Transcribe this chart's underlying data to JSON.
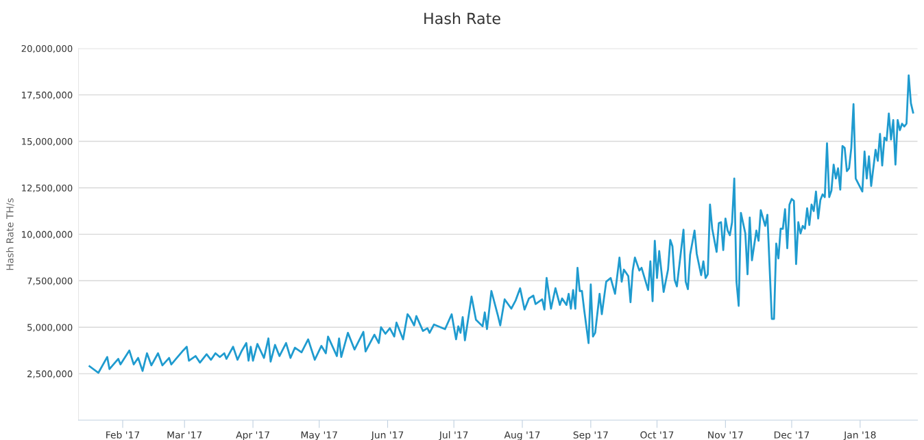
{
  "chart_data": {
    "type": "line",
    "title": "Hash Rate",
    "ylabel": "Hash Rate TH/s",
    "x": [
      "2017-01-17",
      "2017-01-21",
      "2017-01-25",
      "2017-01-26",
      "2017-01-30",
      "2017-01-31",
      "2017-02-04",
      "2017-02-06",
      "2017-02-08",
      "2017-02-10",
      "2017-02-12",
      "2017-02-14",
      "2017-02-17",
      "2017-02-19",
      "2017-02-22",
      "2017-02-23",
      "2017-02-28",
      "2017-03-02",
      "2017-03-03",
      "2017-03-06",
      "2017-03-08",
      "2017-03-11",
      "2017-03-13",
      "2017-03-15",
      "2017-03-17",
      "2017-03-19",
      "2017-03-20",
      "2017-03-23",
      "2017-03-25",
      "2017-03-27",
      "2017-03-29",
      "2017-03-30",
      "2017-03-31",
      "2017-04-01",
      "2017-04-03",
      "2017-04-06",
      "2017-04-08",
      "2017-04-09",
      "2017-04-11",
      "2017-04-13",
      "2017-04-16",
      "2017-04-18",
      "2017-04-20",
      "2017-04-23",
      "2017-04-26",
      "2017-04-29",
      "2017-05-02",
      "2017-05-04",
      "2017-05-05",
      "2017-05-09",
      "2017-05-10",
      "2017-05-11",
      "2017-05-14",
      "2017-05-17",
      "2017-05-21",
      "2017-05-22",
      "2017-05-26",
      "2017-05-28",
      "2017-05-29",
      "2017-05-31",
      "2017-06-02",
      "2017-06-04",
      "2017-06-05",
      "2017-06-08",
      "2017-06-10",
      "2017-06-11",
      "2017-06-13",
      "2017-06-14",
      "2017-06-17",
      "2017-06-19",
      "2017-06-20",
      "2017-06-22",
      "2017-06-27",
      "2017-06-30",
      "2017-07-02",
      "2017-07-03",
      "2017-07-04",
      "2017-07-05",
      "2017-07-06",
      "2017-07-09",
      "2017-07-11",
      "2017-07-14",
      "2017-07-15",
      "2017-07-16",
      "2017-07-18",
      "2017-07-21",
      "2017-07-22",
      "2017-07-24",
      "2017-07-27",
      "2017-07-29",
      "2017-07-31",
      "2017-08-02",
      "2017-08-04",
      "2017-08-06",
      "2017-08-07",
      "2017-08-10",
      "2017-08-11",
      "2017-08-12",
      "2017-08-14",
      "2017-08-16",
      "2017-08-18",
      "2017-08-19",
      "2017-08-21",
      "2017-08-22",
      "2017-08-23",
      "2017-08-24",
      "2017-08-25",
      "2017-08-26",
      "2017-08-27",
      "2017-08-28",
      "2017-08-29",
      "2017-08-31",
      "2017-09-01",
      "2017-09-02",
      "2017-09-03",
      "2017-09-05",
      "2017-09-06",
      "2017-09-08",
      "2017-09-10",
      "2017-09-12",
      "2017-09-14",
      "2017-09-15",
      "2017-09-16",
      "2017-09-18",
      "2017-09-19",
      "2017-09-20",
      "2017-09-21",
      "2017-09-23",
      "2017-09-24",
      "2017-09-25",
      "2017-09-27",
      "2017-09-28",
      "2017-09-29",
      "2017-09-30",
      "2017-10-01",
      "2017-10-02",
      "2017-10-04",
      "2017-10-06",
      "2017-10-07",
      "2017-10-08",
      "2017-10-09",
      "2017-10-10",
      "2017-10-13",
      "2017-10-14",
      "2017-10-15",
      "2017-10-16",
      "2017-10-18",
      "2017-10-19",
      "2017-10-21",
      "2017-10-22",
      "2017-10-23",
      "2017-10-24",
      "2017-10-25",
      "2017-10-26",
      "2017-10-28",
      "2017-10-29",
      "2017-10-30",
      "2017-10-31",
      "2017-11-01",
      "2017-11-02",
      "2017-11-03",
      "2017-11-04",
      "2017-11-05",
      "2017-11-06",
      "2017-11-07",
      "2017-11-08",
      "2017-11-09",
      "2017-11-10",
      "2017-11-11",
      "2017-11-12",
      "2017-11-13",
      "2017-11-15",
      "2017-11-16",
      "2017-11-17",
      "2017-11-19",
      "2017-11-20",
      "2017-11-22",
      "2017-11-23",
      "2017-11-24",
      "2017-11-25",
      "2017-11-26",
      "2017-11-27",
      "2017-11-28",
      "2017-11-29",
      "2017-11-30",
      "2017-12-01",
      "2017-12-02",
      "2017-12-03",
      "2017-12-04",
      "2017-12-05",
      "2017-12-06",
      "2017-12-07",
      "2017-12-08",
      "2017-12-09",
      "2017-12-10",
      "2017-12-11",
      "2017-12-12",
      "2017-12-13",
      "2017-12-14",
      "2017-12-15",
      "2017-12-16",
      "2017-12-17",
      "2017-12-18",
      "2017-12-19",
      "2017-12-20",
      "2017-12-21",
      "2017-12-22",
      "2017-12-23",
      "2017-12-24",
      "2017-12-25",
      "2017-12-26",
      "2017-12-27",
      "2017-12-28",
      "2017-12-29",
      "2017-12-30",
      "2018-01-02",
      "2018-01-03",
      "2018-01-04",
      "2018-01-05",
      "2018-01-06",
      "2018-01-08",
      "2018-01-09",
      "2018-01-10",
      "2018-01-11",
      "2018-01-12",
      "2018-01-13",
      "2018-01-14",
      "2018-01-15",
      "2018-01-16",
      "2018-01-17",
      "2018-01-18",
      "2018-01-19",
      "2018-01-20",
      "2018-01-21",
      "2018-01-22",
      "2018-01-23",
      "2018-01-24",
      "2018-01-25"
    ],
    "series": [
      {
        "color": "#1f9bcf",
        "values": [
          2900000,
          2550000,
          3400000,
          2750000,
          3300000,
          3000000,
          3750000,
          3000000,
          3350000,
          2650000,
          3600000,
          2950000,
          3600000,
          2950000,
          3350000,
          3000000,
          3700000,
          3950000,
          3200000,
          3450000,
          3100000,
          3550000,
          3250000,
          3600000,
          3400000,
          3600000,
          3300000,
          3950000,
          3250000,
          3750000,
          4150000,
          3200000,
          3950000,
          3200000,
          4100000,
          3350000,
          4400000,
          3150000,
          4050000,
          3450000,
          4150000,
          3350000,
          3900000,
          3650000,
          4350000,
          3250000,
          4000000,
          3600000,
          4500000,
          3450000,
          4400000,
          3400000,
          4700000,
          3800000,
          4750000,
          3700000,
          4600000,
          4150000,
          5000000,
          4650000,
          4950000,
          4500000,
          5250000,
          4350000,
          5700000,
          5550000,
          5100000,
          5600000,
          4800000,
          4950000,
          4700000,
          5150000,
          4900000,
          5700000,
          4350000,
          5050000,
          4700000,
          5550000,
          4300000,
          6650000,
          5400000,
          5050000,
          5800000,
          4900000,
          6950000,
          5600000,
          5100000,
          6500000,
          6000000,
          6450000,
          7100000,
          5950000,
          6550000,
          6700000,
          6250000,
          6500000,
          5950000,
          7650000,
          6000000,
          7100000,
          6200000,
          6550000,
          6200000,
          6800000,
          6000000,
          7000000,
          6000000,
          8200000,
          6950000,
          6950000,
          5950000,
          4150000,
          7300000,
          4500000,
          4700000,
          6800000,
          5700000,
          7450000,
          7650000,
          6800000,
          8750000,
          7450000,
          8100000,
          7750000,
          6350000,
          8050000,
          8750000,
          8050000,
          8200000,
          7800000,
          7000000,
          8550000,
          6400000,
          9650000,
          7650000,
          9100000,
          6900000,
          8100000,
          9700000,
          9350000,
          7550000,
          7200000,
          10250000,
          7450000,
          7050000,
          8900000,
          10200000,
          8950000,
          7800000,
          8550000,
          7650000,
          7850000,
          11600000,
          10300000,
          9050000,
          10600000,
          10650000,
          9150000,
          10850000,
          10200000,
          9950000,
          10650000,
          13000000,
          7450000,
          6150000,
          11150000,
          10600000,
          10050000,
          7850000,
          10900000,
          8600000,
          10200000,
          9650000,
          11300000,
          10450000,
          11050000,
          5450000,
          5450000,
          9500000,
          8700000,
          10300000,
          10300000,
          11350000,
          9250000,
          11600000,
          11900000,
          11800000,
          8400000,
          10650000,
          10050000,
          10450000,
          10300000,
          11400000,
          10500000,
          11600000,
          11250000,
          12300000,
          10850000,
          11850000,
          12150000,
          12000000,
          14900000,
          12000000,
          12350000,
          13750000,
          13000000,
          13550000,
          12400000,
          14750000,
          14650000,
          13400000,
          13550000,
          14650000,
          17000000,
          13000000,
          12300000,
          14450000,
          13000000,
          14200000,
          12600000,
          14550000,
          13950000,
          15400000,
          13700000,
          15200000,
          15050000,
          16500000,
          15100000,
          16150000,
          13750000,
          16150000,
          15600000,
          15950000,
          15800000,
          15950000,
          18550000,
          17050000,
          16550000
        ]
      }
    ],
    "xlim": [
      "2017-01-12",
      "2018-01-27"
    ],
    "xticks": [
      {
        "value": "2017-02-01",
        "label": "Feb '17"
      },
      {
        "value": "2017-03-01",
        "label": "Mar '17"
      },
      {
        "value": "2017-04-01",
        "label": "Apr '17"
      },
      {
        "value": "2017-05-01",
        "label": "May '17"
      },
      {
        "value": "2017-06-01",
        "label": "Jun '17"
      },
      {
        "value": "2017-07-01",
        "label": "Jul '17"
      },
      {
        "value": "2017-08-01",
        "label": "Aug '17"
      },
      {
        "value": "2017-09-01",
        "label": "Sep '17"
      },
      {
        "value": "2017-10-01",
        "label": "Oct '17"
      },
      {
        "value": "2017-11-01",
        "label": "Nov '17"
      },
      {
        "value": "2017-12-01",
        "label": "Dec '17"
      },
      {
        "value": "2018-01-01",
        "label": "Jan '18"
      }
    ],
    "ylim": [
      0,
      20000000
    ],
    "yticks": [
      {
        "value": 2500000,
        "label": "2,500,000"
      },
      {
        "value": 5000000,
        "label": "5,000,000"
      },
      {
        "value": 7500000,
        "label": "7,500,000"
      },
      {
        "value": 10000000,
        "label": "10,000,000"
      },
      {
        "value": 12500000,
        "label": "12,500,000"
      },
      {
        "value": 15000000,
        "label": "15,000,000"
      },
      {
        "value": 17500000,
        "label": "17,500,000"
      },
      {
        "value": 20000000,
        "label": "20,000,000"
      }
    ],
    "grid": "y",
    "marker": "none",
    "line_style": "solid"
  }
}
